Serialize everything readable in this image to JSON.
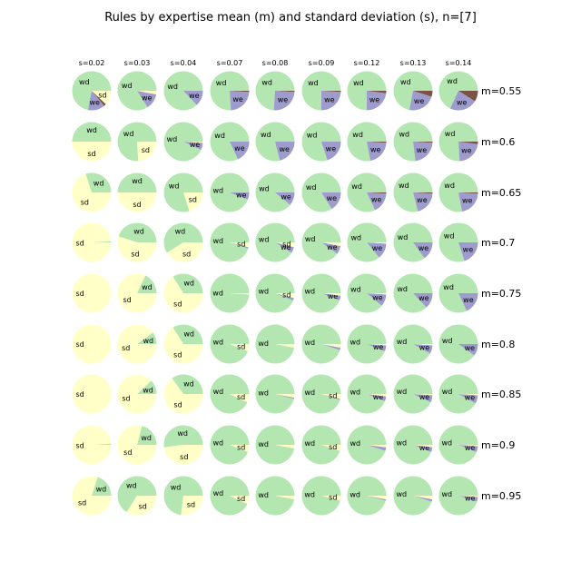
{
  "chart_data": {
    "type": "pie",
    "title": "Rules by expertise mean (m) and standard deviation (s), n=[7]",
    "s_labels": [
      "s=0.02",
      "s=0.03",
      "s=0.04",
      "s=0.07",
      "s=0.08",
      "s=0.09",
      "s=0.12",
      "s=0.13",
      "s=0.14"
    ],
    "m_labels": [
      "m=0.55",
      "m=0.6",
      "m=0.65",
      "m=0.7",
      "m=0.75",
      "m=0.8",
      "m=0.85",
      "m=0.9",
      "m=0.95"
    ],
    "categories": [
      "wd",
      "we",
      "sd",
      "se"
    ],
    "colors": {
      "wd": "#b3e6b0",
      "we": "#9e9ccc",
      "sd": "#ffffc7",
      "se": "#7a5248"
    },
    "note": "Each pie gives the fractional share of rules per category (wd, we, sd, se) for one (m, s) pair. Rows follow m_labels, columns follow s_labels.",
    "grid": [
      [
        {
          "wd": 0.72,
          "we": 0.14,
          "sd": 0.12,
          "se": 0.02
        },
        {
          "wd": 0.84,
          "we": 0.13,
          "sd": 0.03,
          "se": 0.0
        },
        {
          "wd": 0.87,
          "we": 0.13,
          "sd": 0.0,
          "se": 0.0
        },
        {
          "wd": 0.76,
          "we": 0.23,
          "sd": 0.0,
          "se": 0.01
        },
        {
          "wd": 0.74,
          "we": 0.25,
          "sd": 0.0,
          "se": 0.01
        },
        {
          "wd": 0.75,
          "we": 0.24,
          "sd": 0.0,
          "se": 0.01
        },
        {
          "wd": 0.75,
          "we": 0.23,
          "sd": 0.0,
          "se": 0.02
        },
        {
          "wd": 0.72,
          "we": 0.23,
          "sd": 0.0,
          "se": 0.05
        },
        {
          "wd": 0.68,
          "we": 0.23,
          "sd": 0.0,
          "se": 0.09
        }
      ],
      [
        {
          "wd": 0.5,
          "we": 0.0,
          "sd": 0.5,
          "se": 0.0
        },
        {
          "wd": 0.76,
          "we": 0.0,
          "sd": 0.24,
          "se": 0.0
        },
        {
          "wd": 0.93,
          "we": 0.06,
          "sd": 0.01,
          "se": 0.0
        },
        {
          "wd": 0.82,
          "we": 0.18,
          "sd": 0.0,
          "se": 0.0
        },
        {
          "wd": 0.79,
          "we": 0.21,
          "sd": 0.0,
          "se": 0.0
        },
        {
          "wd": 0.8,
          "we": 0.2,
          "sd": 0.0,
          "se": 0.0
        },
        {
          "wd": 0.78,
          "we": 0.21,
          "sd": 0.0,
          "se": 0.01
        },
        {
          "wd": 0.77,
          "we": 0.22,
          "sd": 0.0,
          "se": 0.01
        },
        {
          "wd": 0.76,
          "we": 0.22,
          "sd": 0.0,
          "se": 0.02
        }
      ],
      [
        {
          "wd": 0.3,
          "we": 0.0,
          "sd": 0.7,
          "se": 0.0
        },
        {
          "wd": 0.5,
          "we": 0.0,
          "sd": 0.5,
          "se": 0.0
        },
        {
          "wd": 0.8,
          "we": 0.0,
          "sd": 0.2,
          "se": 0.0
        },
        {
          "wd": 0.94,
          "we": 0.06,
          "sd": 0.0,
          "se": 0.0
        },
        {
          "wd": 0.89,
          "we": 0.11,
          "sd": 0.0,
          "se": 0.0
        },
        {
          "wd": 0.84,
          "we": 0.16,
          "sd": 0.0,
          "se": 0.0
        },
        {
          "wd": 0.82,
          "we": 0.17,
          "sd": 0.0,
          "se": 0.01
        },
        {
          "wd": 0.79,
          "we": 0.2,
          "sd": 0.0,
          "se": 0.01
        },
        {
          "wd": 0.78,
          "we": 0.21,
          "sd": 0.0,
          "se": 0.01
        }
      ],
      [
        {
          "wd": 0.01,
          "we": 0.0,
          "sd": 0.99,
          "se": 0.0
        },
        {
          "wd": 0.45,
          "we": 0.0,
          "sd": 0.55,
          "se": 0.0
        },
        {
          "wd": 0.59,
          "we": 0.0,
          "sd": 0.41,
          "se": 0.0
        },
        {
          "wd": 0.95,
          "we": 0.01,
          "sd": 0.04,
          "se": 0.0
        },
        {
          "wd": 0.91,
          "we": 0.05,
          "sd": 0.04,
          "se": 0.0
        },
        {
          "wd": 0.9,
          "we": 0.07,
          "sd": 0.03,
          "se": 0.0
        },
        {
          "wd": 0.86,
          "we": 0.13,
          "sd": 0.01,
          "se": 0.0
        },
        {
          "wd": 0.85,
          "we": 0.15,
          "sd": 0.0,
          "se": 0.0
        },
        {
          "wd": 0.8,
          "we": 0.2,
          "sd": 0.0,
          "se": 0.0
        }
      ],
      [
        {
          "wd": 0.0,
          "we": 0.0,
          "sd": 1.0,
          "se": 0.0
        },
        {
          "wd": 0.18,
          "we": 0.0,
          "sd": 0.82,
          "se": 0.0
        },
        {
          "wd": 0.34,
          "we": 0.0,
          "sd": 0.66,
          "se": 0.0
        },
        {
          "wd": 0.99,
          "we": 0.0,
          "sd": 0.01,
          "se": 0.0
        },
        {
          "wd": 0.94,
          "we": 0.02,
          "sd": 0.04,
          "se": 0.0
        },
        {
          "wd": 0.94,
          "we": 0.04,
          "sd": 0.02,
          "se": 0.0
        },
        {
          "wd": 0.89,
          "we": 0.1,
          "sd": 0.01,
          "se": 0.0
        },
        {
          "wd": 0.87,
          "we": 0.13,
          "sd": 0.0,
          "se": 0.0
        },
        {
          "wd": 0.82,
          "we": 0.18,
          "sd": 0.0,
          "se": 0.0
        }
      ],
      [
        {
          "wd": 0.0,
          "we": 0.0,
          "sd": 1.0,
          "se": 0.0
        },
        {
          "wd": 0.1,
          "we": 0.0,
          "sd": 0.9,
          "se": 0.0
        },
        {
          "wd": 0.34,
          "we": 0.0,
          "sd": 0.66,
          "se": 0.0
        },
        {
          "wd": 0.94,
          "we": 0.0,
          "sd": 0.06,
          "se": 0.0
        },
        {
          "wd": 0.97,
          "we": 0.0,
          "sd": 0.03,
          "se": 0.0
        },
        {
          "wd": 0.95,
          "we": 0.02,
          "sd": 0.03,
          "se": 0.0
        },
        {
          "wd": 0.94,
          "we": 0.05,
          "sd": 0.01,
          "se": 0.0
        },
        {
          "wd": 0.92,
          "we": 0.07,
          "sd": 0.01,
          "se": 0.0
        },
        {
          "wd": 0.9,
          "we": 0.1,
          "sd": 0.0,
          "se": 0.0
        }
      ],
      [
        {
          "wd": 0.0,
          "we": 0.0,
          "sd": 1.0,
          "se": 0.0
        },
        {
          "wd": 0.12,
          "we": 0.0,
          "sd": 0.88,
          "se": 0.0
        },
        {
          "wd": 0.35,
          "we": 0.0,
          "sd": 0.65,
          "se": 0.0
        },
        {
          "wd": 0.93,
          "we": 0.0,
          "sd": 0.07,
          "se": 0.0
        },
        {
          "wd": 0.96,
          "we": 0.01,
          "sd": 0.03,
          "se": 0.0
        },
        {
          "wd": 0.95,
          "we": 0.01,
          "sd": 0.04,
          "se": 0.0
        },
        {
          "wd": 0.94,
          "we": 0.04,
          "sd": 0.02,
          "se": 0.0
        },
        {
          "wd": 0.93,
          "we": 0.06,
          "sd": 0.01,
          "se": 0.0
        },
        {
          "wd": 0.92,
          "we": 0.07,
          "sd": 0.01,
          "se": 0.0
        }
      ],
      [
        {
          "wd": 0.01,
          "we": 0.0,
          "sd": 0.99,
          "se": 0.0
        },
        {
          "wd": 0.21,
          "we": 0.0,
          "sd": 0.79,
          "se": 0.0
        },
        {
          "wd": 0.52,
          "we": 0.0,
          "sd": 0.48,
          "se": 0.0
        },
        {
          "wd": 0.94,
          "we": 0.0,
          "sd": 0.06,
          "se": 0.0
        },
        {
          "wd": 0.97,
          "we": 0.0,
          "sd": 0.03,
          "se": 0.0
        },
        {
          "wd": 0.95,
          "we": 0.0,
          "sd": 0.05,
          "se": 0.0
        },
        {
          "wd": 0.95,
          "we": 0.03,
          "sd": 0.02,
          "se": 0.0
        },
        {
          "wd": 0.94,
          "we": 0.04,
          "sd": 0.02,
          "se": 0.0
        },
        {
          "wd": 0.94,
          "we": 0.05,
          "sd": 0.01,
          "se": 0.0
        }
      ],
      [
        {
          "wd": 0.2,
          "we": 0.0,
          "sd": 0.8,
          "se": 0.0
        },
        {
          "wd": 0.66,
          "we": 0.0,
          "sd": 0.34,
          "se": 0.0
        },
        {
          "wd": 0.73,
          "we": 0.0,
          "sd": 0.27,
          "se": 0.0
        },
        {
          "wd": 0.93,
          "we": 0.0,
          "sd": 0.07,
          "se": 0.0
        },
        {
          "wd": 0.97,
          "we": 0.0,
          "sd": 0.03,
          "se": 0.0
        },
        {
          "wd": 0.96,
          "we": 0.0,
          "sd": 0.04,
          "se": 0.0
        },
        {
          "wd": 0.96,
          "we": 0.01,
          "sd": 0.03,
          "se": 0.0
        },
        {
          "wd": 0.95,
          "we": 0.02,
          "sd": 0.03,
          "se": 0.0
        },
        {
          "wd": 0.95,
          "we": 0.04,
          "sd": 0.01,
          "se": 0.0
        }
      ]
    ]
  }
}
